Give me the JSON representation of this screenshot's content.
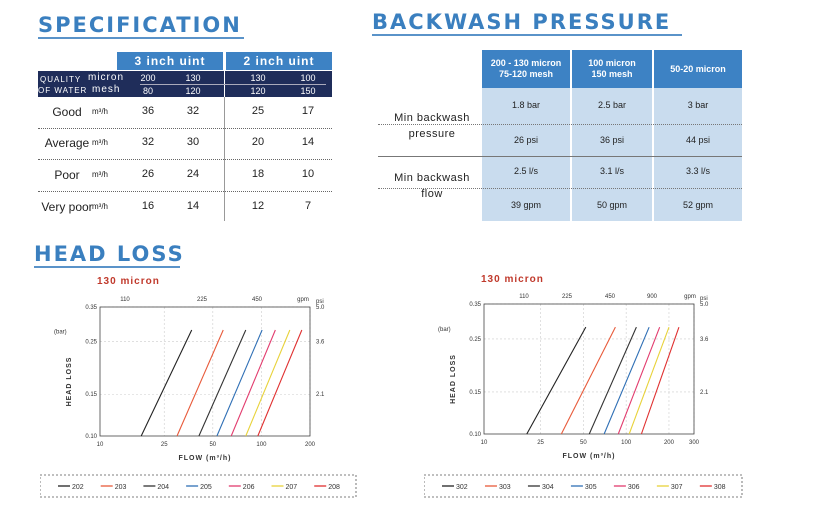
{
  "specification": {
    "title": "SPECIFICATION",
    "header_3inch": "3 inch uint",
    "header_2inch": "2 inch uint",
    "quality_label_1": "QUALITY",
    "quality_label_2": "OF WATER",
    "micron_label": "micron",
    "mesh_label": "mesh",
    "micron_values": [
      "200",
      "130",
      "130",
      "100"
    ],
    "mesh_values": [
      "80",
      "120",
      "120",
      "150"
    ],
    "unit": "m³/h",
    "rows": [
      {
        "label": "Good",
        "values": [
          "36",
          "32",
          "25",
          "17"
        ]
      },
      {
        "label": "Average",
        "values": [
          "32",
          "30",
          "20",
          "14"
        ]
      },
      {
        "label": "Poor",
        "values": [
          "26",
          "24",
          "18",
          "10"
        ]
      },
      {
        "label": "Very poor",
        "values": [
          "16",
          "14",
          "12",
          "7"
        ]
      }
    ]
  },
  "backwash": {
    "title": "BACKWASH PRESSURE",
    "columns": [
      {
        "line1": "200 - 130 micron",
        "line2": "75-120 mesh"
      },
      {
        "line1": "100 micron",
        "line2": "150 mesh"
      },
      {
        "line1": "50-20 micron",
        "line2": ""
      }
    ],
    "pressure_label_1": "Min backwash",
    "pressure_label_2": "pressure",
    "flow_label_1": "Min backwash",
    "flow_label_2": "flow",
    "bar_values": [
      "1.8 bar",
      "2.5 bar",
      "3 bar"
    ],
    "psi_values": [
      "26 psi",
      "36 psi",
      "44 psi"
    ],
    "ls_values": [
      "2.5 l/s",
      "3.1 l/s",
      "3.3 l/s"
    ],
    "gpm_values": [
      "39 gpm",
      "50 gpm",
      "52 gpm"
    ]
  },
  "head_loss": {
    "title": "HEAD LOSS"
  },
  "chart_data": [
    {
      "type": "line",
      "title": "130 micron",
      "xlabel": "FLOW (m³/h)",
      "ylabel": "HEAD LOSS",
      "yunit": "(bar)",
      "x_ticks": [
        "10",
        "25",
        "50",
        "100",
        "200"
      ],
      "y_ticks": [
        "0.10",
        "0.15",
        "0.25",
        "0.35"
      ],
      "top_ticks": [
        "110",
        "225",
        "450",
        "gpm"
      ],
      "right_ticks": [
        "psi",
        "5.0",
        "3.6",
        "2.1"
      ],
      "series": [
        {
          "name": "202",
          "color": "#222222",
          "x": [
            18,
            37
          ],
          "y": [
            0.1,
            0.28
          ]
        },
        {
          "name": "203",
          "color": "#e85a3a",
          "x": [
            30,
            58
          ],
          "y": [
            0.1,
            0.28
          ]
        },
        {
          "name": "204",
          "color": "#333333",
          "x": [
            41,
            80
          ],
          "y": [
            0.1,
            0.28
          ]
        },
        {
          "name": "205",
          "color": "#2f6fb5",
          "x": [
            53,
            101
          ],
          "y": [
            0.1,
            0.28
          ]
        },
        {
          "name": "206",
          "color": "#e23c6e",
          "x": [
            65,
            122
          ],
          "y": [
            0.1,
            0.28
          ]
        },
        {
          "name": "207",
          "color": "#e8d23a",
          "x": [
            80,
            150
          ],
          "y": [
            0.1,
            0.28
          ]
        },
        {
          "name": "208",
          "color": "#e03030",
          "x": [
            95,
            178
          ],
          "y": [
            0.1,
            0.28
          ]
        }
      ]
    },
    {
      "type": "line",
      "title": "130 micron",
      "xlabel": "FLOW (m³/h)",
      "ylabel": "HEAD LOSS",
      "yunit": "(bar)",
      "x_ticks": [
        "10",
        "25",
        "50",
        "100",
        "200",
        "300"
      ],
      "y_ticks": [
        "0.10",
        "0.15",
        "0.25",
        "0.35"
      ],
      "top_ticks": [
        "110",
        "225",
        "450",
        "900",
        "gpm"
      ],
      "right_ticks": [
        "psi",
        "5.0",
        "3.6",
        "2.1"
      ],
      "series": [
        {
          "name": "302",
          "color": "#222222",
          "x": [
            20,
            52
          ],
          "y": [
            0.1,
            0.28
          ]
        },
        {
          "name": "303",
          "color": "#e85a3a",
          "x": [
            35,
            84
          ],
          "y": [
            0.1,
            0.28
          ]
        },
        {
          "name": "304",
          "color": "#333333",
          "x": [
            55,
            118
          ],
          "y": [
            0.1,
            0.28
          ]
        },
        {
          "name": "305",
          "color": "#2f6fb5",
          "x": [
            70,
            145
          ],
          "y": [
            0.1,
            0.28
          ]
        },
        {
          "name": "306",
          "color": "#e23c6e",
          "x": [
            88,
            172
          ],
          "y": [
            0.1,
            0.28
          ]
        },
        {
          "name": "307",
          "color": "#e8d23a",
          "x": [
            105,
            200
          ],
          "y": [
            0.1,
            0.28
          ]
        },
        {
          "name": "308",
          "color": "#e03030",
          "x": [
            128,
            235
          ],
          "y": [
            0.1,
            0.28
          ]
        }
      ]
    }
  ]
}
